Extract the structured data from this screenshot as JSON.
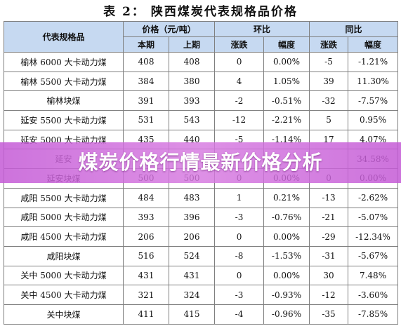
{
  "title": "表 2： 陕西煤炭代表规格品价格",
  "table": {
    "header": [
      "代表规格品",
      "价格（元/吨）",
      "环比",
      "同比"
    ],
    "subheader": [
      "本期",
      "上期",
      "涨跌",
      "幅度",
      "涨跌",
      "幅度"
    ],
    "rows": [
      [
        "榆林 6000 大卡动力煤",
        "408",
        "408",
        "0",
        "0.00%",
        "-5",
        "-1.21%"
      ],
      [
        "榆林 5500 大卡动力煤",
        "384",
        "380",
        "4",
        "1.05%",
        "39",
        "11.30%"
      ],
      [
        "榆林块煤",
        "391",
        "393",
        "-2",
        "-0.51%",
        "-32",
        "-7.57%"
      ],
      [
        "延安 5500 大卡动力煤",
        "531",
        "543",
        "-12",
        "-2.21%",
        "5",
        "0.95%"
      ],
      [
        "延安 5000 大卡动力煤",
        "435",
        "440",
        "-5",
        "-1.14%",
        "17",
        "4.07%"
      ],
      [
        "延安",
        null,
        null,
        null,
        null,
        null,
        "34.58%"
      ],
      [
        "延安块煤",
        "500",
        "500",
        "0",
        "0.00%",
        "0",
        "0.00%"
      ],
      [
        "咸阳 5500 大卡动力煤",
        "484",
        "483",
        "1",
        "0.21%",
        "-13",
        "-2.62%"
      ],
      [
        "咸阳 5000 大卡动力煤",
        "393",
        "396",
        "-3",
        "-0.76%",
        "-21",
        "-5.07%"
      ],
      [
        "咸阳 4500 大卡动力煤",
        "206",
        "206",
        "0",
        "0.00%",
        "-29",
        "-12.34%"
      ],
      [
        "咸阳块煤",
        "516",
        "524",
        "-8",
        "-1.53%",
        "-31",
        "-5.67%"
      ],
      [
        "关中 5000 大卡动力煤",
        "431",
        "431",
        "0",
        "0.00%",
        "30",
        "7.48%"
      ],
      [
        "关中 4500 大卡动力煤",
        "321",
        "324",
        "-3",
        "-0.93%",
        "-12",
        "-3.60%"
      ],
      [
        "关中块煤",
        "411",
        "415",
        "-4",
        "-0.96%",
        "-35",
        "-7.85%"
      ]
    ]
  },
  "banner": "煤炭价格行情最新价格分析"
}
